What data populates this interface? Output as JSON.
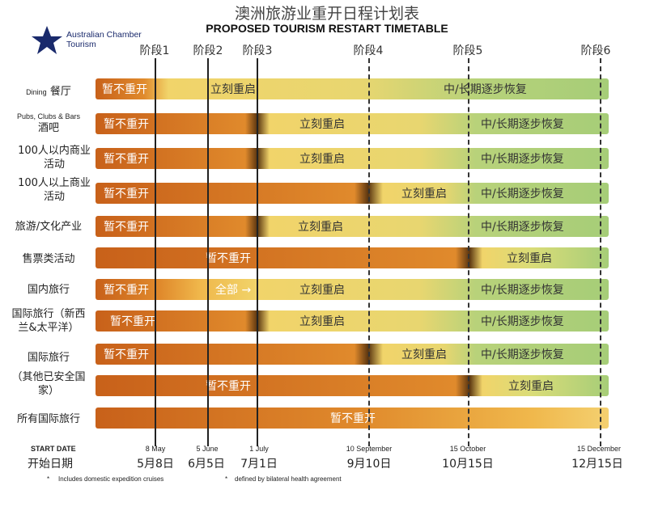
{
  "header": {
    "title": "澳洲旅游业重开日程计划表",
    "subtitle": "PROPOSED TOURISM RESTART TIMETABLE",
    "logo_line1": "Australian Chamber",
    "logo_line2": "Tourism",
    "logo_icon": "southern-cross-star-icon"
  },
  "phases": [
    "阶段1",
    "阶段2",
    "阶段3",
    "阶段4",
    "阶段5",
    "阶段6"
  ],
  "rows": [
    {
      "label": "餐厅",
      "label_en": "Dining",
      "segments": [
        "暂不重开",
        "立刻重启",
        "中/长期逐步恢复"
      ]
    },
    {
      "label": "酒吧",
      "label_en": "Pubs, Clubs & Bars",
      "segments": [
        "暂不重开",
        "立刻重启",
        "中/长期逐步恢复"
      ]
    },
    {
      "label": "100人以内商业活动",
      "segments": [
        "暂不重开",
        "立刻重启",
        "中/长期逐步恢复"
      ]
    },
    {
      "label": "100人以上商业活动",
      "segments": [
        "暂不重开",
        "立刻重启",
        "中/长期逐步恢复"
      ]
    },
    {
      "label": "旅游/文化产业",
      "segments": [
        "暂不重开",
        "立刻重启",
        "中/长期逐步恢复"
      ]
    },
    {
      "label": "售票类活动",
      "segments": [
        "暂不重开",
        "立刻重启"
      ]
    },
    {
      "label": "国内旅行",
      "segments": [
        "暂不重开",
        "全部 →",
        "立刻重启",
        "中/长期逐步恢复"
      ]
    },
    {
      "label": "国际旅行（新西兰&太平洋）",
      "segments": [
        "暂不重开",
        "立刻重启",
        "中/长期逐步恢复"
      ]
    },
    {
      "label": "国际旅行",
      "segments": [
        "暂不重开",
        "立刻重启",
        "中/长期逐步恢复"
      ]
    },
    {
      "label": "（其他已安全国家）",
      "segments": [
        "暂不重开",
        "立刻重启"
      ]
    },
    {
      "label": "所有国际旅行",
      "segments": [
        "暂不重开"
      ]
    }
  ],
  "footer": {
    "start_en": "START DATE",
    "start_cn": "开始日期",
    "dates_en": [
      "8 May",
      "5 June",
      "1 July",
      "10 September",
      "15 October",
      "15 December"
    ],
    "dates_cn": [
      "5月8日",
      "6月5日",
      "7月1日",
      "9月10日",
      "10月15日",
      "12月15日"
    ],
    "note1": "Includes domestic expedition cruises",
    "note2": "defined by bilateral health agreement",
    "note_mark1": "*",
    "note_mark2": "*"
  },
  "colors": {
    "orange_dark": "#c8611a",
    "orange": "#e08a2c",
    "yellow": "#f1d46a",
    "green": "#a6cd78"
  }
}
